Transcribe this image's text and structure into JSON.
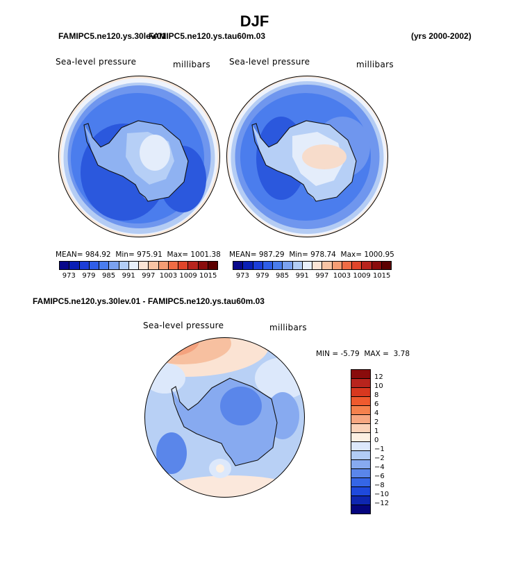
{
  "title": "DJF",
  "header": {
    "left_case": "FAMIPC5.ne120.ys.30lev.01",
    "right_case": "FAMIPC5.ne120.ys.tau60m.03",
    "years": "(yrs 2000-2002)"
  },
  "panel1": {
    "variable": "Sea-level pressure",
    "units": "millibars",
    "mean_label": "MEAN=",
    "mean": "984.92",
    "min_label": "Min=",
    "min": "975.91",
    "max_label": "Max=",
    "max": "1001.38"
  },
  "panel2": {
    "variable": "Sea-level pressure",
    "units": "millibars",
    "mean_label": "MEAN=",
    "mean": "987.29",
    "min_label": "Min=",
    "min": "978.74",
    "max_label": "Max=",
    "max": "1000.95"
  },
  "colorbar_main": {
    "colors": [
      "#08088a",
      "#0a1fb5",
      "#1c3ed8",
      "#2f5ee8",
      "#4a7ded",
      "#7ba2f0",
      "#b2cdf5",
      "#e8f0fb",
      "#fbe5d6",
      "#f8c4a4",
      "#f59d74",
      "#ef6c45",
      "#e0452a",
      "#b8241d",
      "#8a0c0c",
      "#5c0000"
    ],
    "ticks": [
      "973",
      "979",
      "985",
      "991",
      "997",
      "1003",
      "1009",
      "1015"
    ]
  },
  "diff_title": "FAMIPC5.ne120.ys.30lev.01 - FAMIPC5.ne120.ys.tau60m.03",
  "panel3": {
    "variable": "Sea-level pressure",
    "units": "millibars",
    "min_label": "MIN =",
    "min": "-5.79",
    "max_label": "MAX =",
    "max": "3.78"
  },
  "colorbar_diff": {
    "colors": [
      "#8a0c0c",
      "#b8241d",
      "#d8381f",
      "#ef5a2e",
      "#f5814d",
      "#f7a781",
      "#fbd2b8",
      "#fdf0e2",
      "#dce8fb",
      "#b2cdf5",
      "#87aaf0",
      "#5a86ea",
      "#3566e6",
      "#1e49dc",
      "#0e26b0",
      "#05057e"
    ],
    "ticks": [
      "12",
      "10",
      "8",
      "6",
      "4",
      "2",
      "1",
      "0",
      "−1",
      "−2",
      "−4",
      "−6",
      "−8",
      "−10",
      "−12"
    ]
  },
  "map_colors": {
    "outer": "#fae7d8",
    "ring1": "#eef3fc",
    "ring2": "#b4ccf4",
    "ring3": "#6f96ee",
    "ring4": "#4b7ded",
    "deep": "#2b58dd",
    "land1": "#8fb2f2",
    "land2": "#b6cff6",
    "land3": "#e4edfb"
  }
}
